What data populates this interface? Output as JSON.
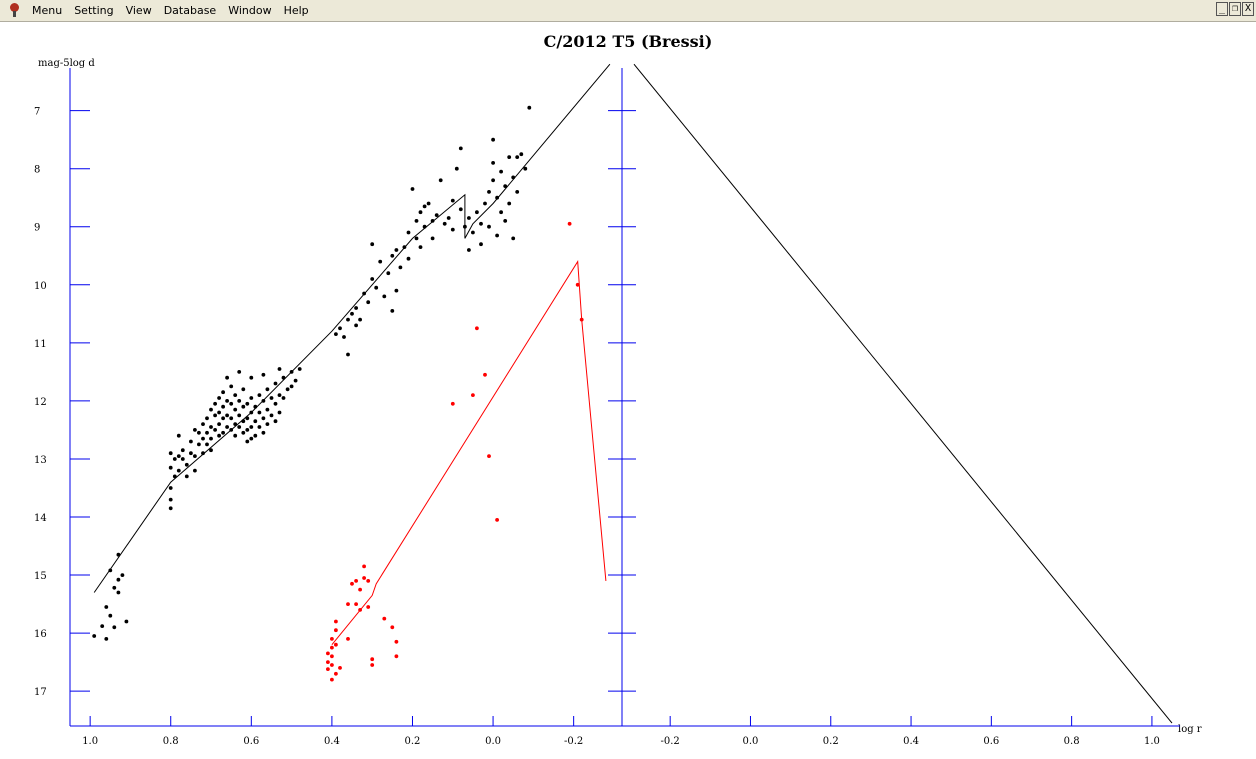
{
  "menubar": {
    "items": [
      {
        "label": "Menu",
        "name": "menu-item-menu"
      },
      {
        "label": "Setting",
        "name": "menu-item-setting"
      },
      {
        "label": "View",
        "name": "menu-item-view"
      },
      {
        "label": "Database",
        "name": "menu-item-database"
      },
      {
        "label": "Window",
        "name": "menu-item-window"
      },
      {
        "label": "Help",
        "name": "menu-item-help"
      }
    ],
    "window_controls": [
      "_",
      "❐",
      "X"
    ]
  },
  "colors": {
    "axis": "#0000ee",
    "observed": "#000000",
    "secondary": "#ff0000",
    "window": "#ece9d8"
  },
  "chart_data": {
    "type": "scatter",
    "title": "C/2012 T5 (Bressi)",
    "ylabel": "mag-5log d",
    "xlabel": "log r",
    "left_panel": {
      "xlim": [
        1.05,
        -0.32
      ],
      "ylim": [
        17.6,
        6.3
      ],
      "x_ticks": [
        1.0,
        0.8,
        0.6,
        0.4,
        0.2,
        0.0,
        -0.2
      ],
      "x_tick_labels": [
        "1.0",
        "0.8",
        "0.6",
        "0.4",
        "0.2",
        "0.0",
        "-0.2"
      ],
      "y_ticks": [
        7,
        8,
        9,
        10,
        11,
        12,
        13,
        14,
        15,
        16,
        17
      ],
      "y_tick_labels": [
        "7",
        "8",
        "9",
        "10",
        "11",
        "12",
        "13",
        "14",
        "15",
        "16",
        "17"
      ]
    },
    "right_panel": {
      "xlim": [
        -0.32,
        1.05
      ],
      "x_ticks": [
        -0.2,
        0.0,
        0.2,
        0.4,
        0.6,
        0.8,
        1.0
      ],
      "x_tick_labels": [
        "-0.2",
        "0.0",
        "0.2",
        "0.4",
        "0.6",
        "0.8",
        "1.0"
      ]
    },
    "series": [
      {
        "color": "#000000",
        "kind": "points",
        "points": [
          [
            0.99,
            16.05
          ],
          [
            0.97,
            15.88
          ],
          [
            0.96,
            16.1
          ],
          [
            0.95,
            15.7
          ],
          [
            0.96,
            15.55
          ],
          [
            0.94,
            15.22
          ],
          [
            0.93,
            15.08
          ],
          [
            0.95,
            14.92
          ],
          [
            0.93,
            14.65
          ],
          [
            0.92,
            15.0
          ],
          [
            0.93,
            15.3
          ],
          [
            0.91,
            15.8
          ],
          [
            0.94,
            15.9
          ],
          [
            0.8,
            13.85
          ],
          [
            0.8,
            13.7
          ],
          [
            0.8,
            13.5
          ],
          [
            0.79,
            13.3
          ],
          [
            0.8,
            13.15
          ],
          [
            0.79,
            13.0
          ],
          [
            0.8,
            12.9
          ],
          [
            0.78,
            12.95
          ],
          [
            0.78,
            13.2
          ],
          [
            0.77,
            13.0
          ],
          [
            0.77,
            12.85
          ],
          [
            0.76,
            13.3
          ],
          [
            0.76,
            13.1
          ],
          [
            0.75,
            12.9
          ],
          [
            0.75,
            12.7
          ],
          [
            0.74,
            12.95
          ],
          [
            0.74,
            13.2
          ],
          [
            0.73,
            12.75
          ],
          [
            0.73,
            12.55
          ],
          [
            0.72,
            12.4
          ],
          [
            0.72,
            12.65
          ],
          [
            0.72,
            12.9
          ],
          [
            0.71,
            12.3
          ],
          [
            0.71,
            12.55
          ],
          [
            0.71,
            12.75
          ],
          [
            0.7,
            12.15
          ],
          [
            0.7,
            12.45
          ],
          [
            0.7,
            12.65
          ],
          [
            0.7,
            12.85
          ],
          [
            0.69,
            12.05
          ],
          [
            0.69,
            12.25
          ],
          [
            0.69,
            12.5
          ],
          [
            0.68,
            11.95
          ],
          [
            0.68,
            12.2
          ],
          [
            0.68,
            12.4
          ],
          [
            0.68,
            12.6
          ],
          [
            0.67,
            11.85
          ],
          [
            0.67,
            12.1
          ],
          [
            0.67,
            12.3
          ],
          [
            0.67,
            12.55
          ],
          [
            0.66,
            12.0
          ],
          [
            0.66,
            12.25
          ],
          [
            0.66,
            12.45
          ],
          [
            0.65,
            11.75
          ],
          [
            0.65,
            12.05
          ],
          [
            0.65,
            12.3
          ],
          [
            0.65,
            12.5
          ],
          [
            0.64,
            11.9
          ],
          [
            0.64,
            12.15
          ],
          [
            0.64,
            12.4
          ],
          [
            0.64,
            12.6
          ],
          [
            0.63,
            12.0
          ],
          [
            0.63,
            12.25
          ],
          [
            0.63,
            12.45
          ],
          [
            0.62,
            11.8
          ],
          [
            0.62,
            12.1
          ],
          [
            0.62,
            12.35
          ],
          [
            0.62,
            12.55
          ],
          [
            0.61,
            12.05
          ],
          [
            0.61,
            12.3
          ],
          [
            0.61,
            12.5
          ],
          [
            0.61,
            12.7
          ],
          [
            0.6,
            11.95
          ],
          [
            0.6,
            12.2
          ],
          [
            0.6,
            12.45
          ],
          [
            0.6,
            12.65
          ],
          [
            0.59,
            12.1
          ],
          [
            0.59,
            12.35
          ],
          [
            0.59,
            12.6
          ],
          [
            0.58,
            11.9
          ],
          [
            0.58,
            12.2
          ],
          [
            0.58,
            12.45
          ],
          [
            0.57,
            12.0
          ],
          [
            0.57,
            12.3
          ],
          [
            0.57,
            12.55
          ],
          [
            0.56,
            11.8
          ],
          [
            0.56,
            12.15
          ],
          [
            0.56,
            12.4
          ],
          [
            0.55,
            11.95
          ],
          [
            0.55,
            12.25
          ],
          [
            0.54,
            11.7
          ],
          [
            0.54,
            12.05
          ],
          [
            0.54,
            12.35
          ],
          [
            0.53,
            11.9
          ],
          [
            0.53,
            12.2
          ],
          [
            0.52,
            11.6
          ],
          [
            0.52,
            11.95
          ],
          [
            0.51,
            11.8
          ],
          [
            0.5,
            11.5
          ],
          [
            0.5,
            11.75
          ],
          [
            0.49,
            11.65
          ],
          [
            0.48,
            11.45
          ],
          [
            0.53,
            11.45
          ],
          [
            0.57,
            11.55
          ],
          [
            0.6,
            11.6
          ],
          [
            0.63,
            11.5
          ],
          [
            0.66,
            11.6
          ],
          [
            0.74,
            12.5
          ],
          [
            0.78,
            12.6
          ],
          [
            0.39,
            10.85
          ],
          [
            0.38,
            10.75
          ],
          [
            0.37,
            10.9
          ],
          [
            0.36,
            10.6
          ],
          [
            0.36,
            11.2
          ],
          [
            0.35,
            10.5
          ],
          [
            0.34,
            10.7
          ],
          [
            0.34,
            10.4
          ],
          [
            0.33,
            10.6
          ],
          [
            0.32,
            10.15
          ],
          [
            0.31,
            10.3
          ],
          [
            0.3,
            9.9
          ],
          [
            0.3,
            9.3
          ],
          [
            0.29,
            10.05
          ],
          [
            0.28,
            9.6
          ],
          [
            0.27,
            10.2
          ],
          [
            0.26,
            9.8
          ],
          [
            0.25,
            9.5
          ],
          [
            0.25,
            10.45
          ],
          [
            0.24,
            9.4
          ],
          [
            0.24,
            10.1
          ],
          [
            0.23,
            9.7
          ],
          [
            0.22,
            9.35
          ],
          [
            0.21,
            9.55
          ],
          [
            0.21,
            9.1
          ],
          [
            0.2,
            8.35
          ],
          [
            0.19,
            9.2
          ],
          [
            0.19,
            8.9
          ],
          [
            0.18,
            8.75
          ],
          [
            0.18,
            9.35
          ],
          [
            0.17,
            8.65
          ],
          [
            0.17,
            9.0
          ],
          [
            0.16,
            8.6
          ],
          [
            0.15,
            8.9
          ],
          [
            0.15,
            9.2
          ],
          [
            0.14,
            8.8
          ],
          [
            0.13,
            8.2
          ],
          [
            0.12,
            8.95
          ],
          [
            0.11,
            8.85
          ],
          [
            0.1,
            8.55
          ],
          [
            0.1,
            9.05
          ],
          [
            0.09,
            8.0
          ],
          [
            0.08,
            7.65
          ],
          [
            0.08,
            8.7
          ],
          [
            0.07,
            9.0
          ],
          [
            0.06,
            8.85
          ],
          [
            0.06,
            9.4
          ],
          [
            0.05,
            9.1
          ],
          [
            0.04,
            8.75
          ],
          [
            0.03,
            9.3
          ],
          [
            0.03,
            8.95
          ],
          [
            0.02,
            8.6
          ],
          [
            0.01,
            9.0
          ],
          [
            0.01,
            8.4
          ],
          [
            0.0,
            7.5
          ],
          [
            0.0,
            7.9
          ],
          [
            0.0,
            8.2
          ],
          [
            -0.01,
            8.5
          ],
          [
            -0.01,
            9.15
          ],
          [
            -0.02,
            8.75
          ],
          [
            -0.02,
            8.05
          ],
          [
            -0.03,
            8.3
          ],
          [
            -0.03,
            8.9
          ],
          [
            -0.04,
            7.8
          ],
          [
            -0.04,
            8.6
          ],
          [
            -0.05,
            8.15
          ],
          [
            -0.05,
            9.2
          ],
          [
            -0.06,
            7.8
          ],
          [
            -0.06,
            8.4
          ],
          [
            -0.07,
            7.75
          ],
          [
            -0.08,
            8.0
          ],
          [
            -0.09,
            6.95
          ]
        ]
      },
      {
        "color": "#000000",
        "kind": "line",
        "points": [
          [
            0.99,
            15.3
          ],
          [
            0.8,
            13.4
          ],
          [
            0.6,
            12.2
          ],
          [
            0.4,
            10.8
          ],
          [
            0.2,
            9.2
          ],
          [
            0.07,
            8.45
          ],
          [
            0.07,
            9.2
          ],
          [
            0.05,
            8.95
          ],
          [
            0.0,
            8.6
          ],
          [
            -0.29,
            6.2
          ]
        ]
      },
      {
        "color": "#000000",
        "kind": "line",
        "points": [
          [
            -0.29,
            6.2
          ],
          [
            1.05,
            17.55
          ]
        ],
        "panel": "right"
      },
      {
        "color": "#ff0000",
        "kind": "points",
        "points": [
          [
            0.4,
            16.25
          ],
          [
            0.41,
            16.35
          ],
          [
            0.41,
            16.5
          ],
          [
            0.4,
            16.55
          ],
          [
            0.39,
            16.7
          ],
          [
            0.41,
            16.62
          ],
          [
            0.4,
            16.4
          ],
          [
            0.4,
            16.1
          ],
          [
            0.39,
            16.2
          ],
          [
            0.39,
            15.95
          ],
          [
            0.39,
            15.8
          ],
          [
            0.4,
            16.8
          ],
          [
            0.38,
            16.6
          ],
          [
            0.36,
            16.1
          ],
          [
            0.36,
            15.5
          ],
          [
            0.35,
            15.15
          ],
          [
            0.34,
            15.1
          ],
          [
            0.34,
            15.5
          ],
          [
            0.33,
            15.6
          ],
          [
            0.33,
            15.25
          ],
          [
            0.32,
            14.85
          ],
          [
            0.32,
            15.05
          ],
          [
            0.31,
            15.1
          ],
          [
            0.31,
            15.55
          ],
          [
            0.3,
            16.45
          ],
          [
            0.3,
            16.55
          ],
          [
            0.27,
            15.75
          ],
          [
            0.25,
            15.9
          ],
          [
            0.24,
            16.15
          ],
          [
            0.24,
            16.4
          ],
          [
            0.1,
            12.05
          ],
          [
            0.05,
            11.9
          ],
          [
            0.04,
            10.75
          ],
          [
            0.02,
            11.55
          ],
          [
            0.01,
            12.95
          ],
          [
            -0.01,
            14.05
          ],
          [
            -0.19,
            8.95
          ],
          [
            -0.21,
            10.0
          ],
          [
            -0.22,
            10.6
          ]
        ]
      },
      {
        "color": "#ff0000",
        "kind": "line",
        "points": [
          [
            0.4,
            16.2
          ],
          [
            0.3,
            15.35
          ],
          [
            0.29,
            15.15
          ],
          [
            -0.21,
            9.6
          ],
          [
            -0.22,
            10.6
          ],
          [
            -0.28,
            15.1
          ]
        ]
      }
    ]
  }
}
